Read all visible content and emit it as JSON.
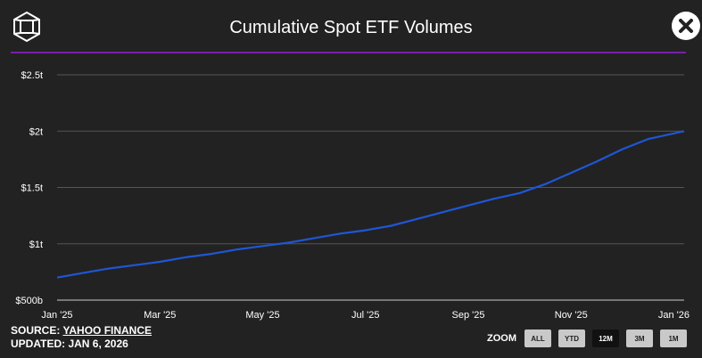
{
  "header": {
    "title": "Cumulative Spot ETF Volumes",
    "logo_icon": "cube-logo-icon",
    "close_icon": "close-icon"
  },
  "footer": {
    "source_prefix": "SOURCE: ",
    "source_name": "YAHOO FINANCE",
    "updated": "UPDATED: JAN 6, 2026"
  },
  "zoom": {
    "label": "ZOOM",
    "buttons": [
      "ALL",
      "YTD",
      "12M",
      "3M",
      "1M"
    ],
    "active": "12M"
  },
  "colors": {
    "background": "#222222",
    "line": "#1f56d6",
    "accent": "#7a1fa8",
    "grid": "#555555"
  },
  "chart_data": {
    "type": "line",
    "title": "Cumulative Spot ETF Volumes",
    "xlabel": "",
    "ylabel": "",
    "xlim": [
      0,
      12.2
    ],
    "ylim": [
      0.5,
      2.6
    ],
    "y_ticks": [
      {
        "value": 0.5,
        "label": "$500b"
      },
      {
        "value": 1.0,
        "label": "$1t"
      },
      {
        "value": 1.5,
        "label": "$1.5t"
      },
      {
        "value": 2.0,
        "label": "$2t"
      },
      {
        "value": 2.5,
        "label": "$2.5t"
      }
    ],
    "x_ticks": [
      {
        "value": 0,
        "label": "Jan '25"
      },
      {
        "value": 2,
        "label": "Mar '25"
      },
      {
        "value": 4,
        "label": "May '25"
      },
      {
        "value": 6,
        "label": "Jul '25"
      },
      {
        "value": 8,
        "label": "Sep '25"
      },
      {
        "value": 10,
        "label": "Nov '25"
      },
      {
        "value": 12,
        "label": "Jan '26"
      }
    ],
    "series": [
      {
        "name": "Cumulative Spot ETF Volumes",
        "x": [
          0,
          0.5,
          1.0,
          1.5,
          2.0,
          2.5,
          3.0,
          3.5,
          4.0,
          4.5,
          5.0,
          5.5,
          6.0,
          6.5,
          7.0,
          7.5,
          8.0,
          8.5,
          9.0,
          9.5,
          10.0,
          10.5,
          11.0,
          11.5,
          12.0,
          12.2
        ],
        "values": [
          0.7,
          0.74,
          0.78,
          0.81,
          0.84,
          0.88,
          0.91,
          0.95,
          0.98,
          1.01,
          1.05,
          1.09,
          1.12,
          1.16,
          1.22,
          1.28,
          1.34,
          1.4,
          1.45,
          1.53,
          1.63,
          1.73,
          1.84,
          1.93,
          1.98,
          2.0
        ]
      }
    ]
  }
}
